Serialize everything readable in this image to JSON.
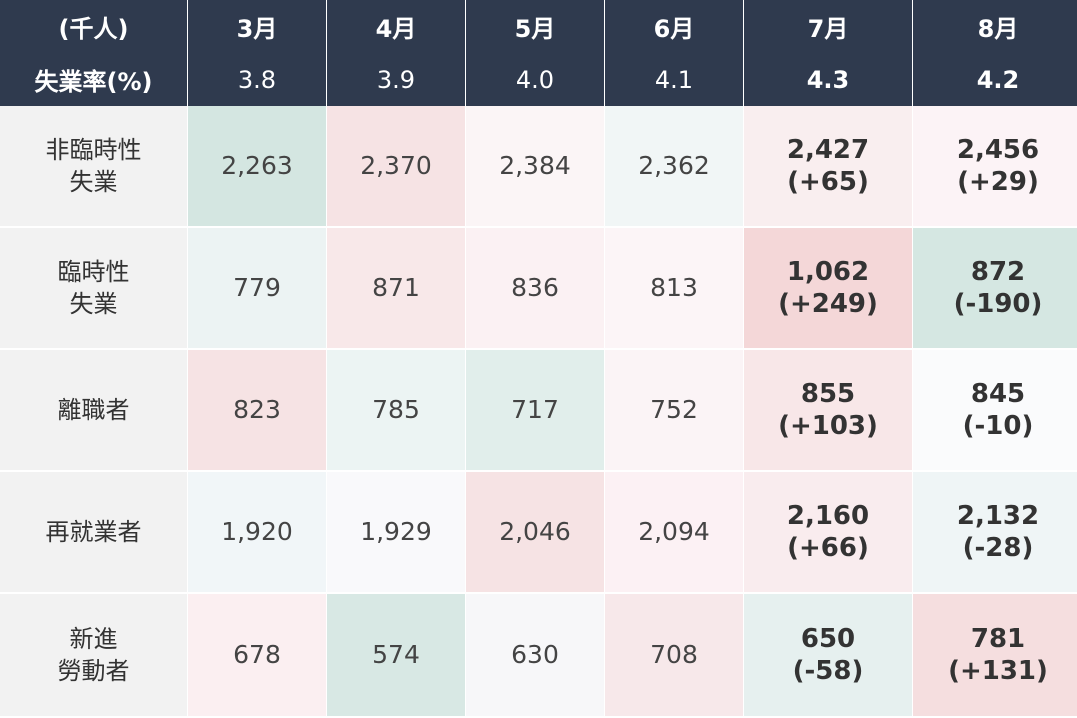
{
  "chart_data": {
    "type": "table",
    "corner_label": "(千人)",
    "columns": [
      "3月",
      "4月",
      "5月",
      "6月",
      "7月",
      "8月"
    ],
    "rate_label": "失業率(%)",
    "rates": [
      "3.8",
      "3.9",
      "4.0",
      "4.1",
      "4.3",
      "4.2"
    ],
    "rows": [
      {
        "label": "非臨時性\n失業",
        "values": [
          "2,263",
          "2,370",
          "2,384",
          "2,362",
          "2,427",
          "2,456"
        ],
        "deltas": [
          "",
          "",
          "",
          "",
          "(+65)",
          "(+29)"
        ],
        "colors": [
          "#d4e6e1",
          "#f6e3e4",
          "#fbf5f6",
          "#f1f6f6",
          "#f9eeef",
          "#fcf3f6"
        ]
      },
      {
        "label": "臨時性\n失業",
        "values": [
          "779",
          "871",
          "836",
          "813",
          "1,062",
          "872"
        ],
        "deltas": [
          "",
          "",
          "",
          "",
          "(+249)",
          "(-190)"
        ],
        "colors": [
          "#ecf3f3",
          "#f8e8e9",
          "#fbf1f3",
          "#fcf5f7",
          "#f4d7d8",
          "#d5e7e2"
        ]
      },
      {
        "label": "離職者",
        "values": [
          "823",
          "785",
          "717",
          "752",
          "855",
          "845"
        ],
        "deltas": [
          "",
          "",
          "",
          "",
          "(+103)",
          "(-10)"
        ],
        "colors": [
          "#f6e3e4",
          "#ecf4f3",
          "#e1eeeb",
          "#fbf4f6",
          "#f8e7e8",
          "#fafbfc"
        ]
      },
      {
        "label": "再就業者",
        "values": [
          "1,920",
          "1,929",
          "2,046",
          "2,094",
          "2,160",
          "2,132"
        ],
        "deltas": [
          "",
          "",
          "",
          "",
          "(+66)",
          "(-28)"
        ],
        "colors": [
          "#f1f6f8",
          "#f9f9fb",
          "#f6e3e4",
          "#fcf1f4",
          "#f9ecee",
          "#eff5f6"
        ]
      },
      {
        "label": "新進\n勞動者",
        "values": [
          "678",
          "574",
          "630",
          "708",
          "650",
          "781"
        ],
        "deltas": [
          "",
          "",
          "",
          "",
          "(-58)",
          "(+131)"
        ],
        "colors": [
          "#fbeff1",
          "#d8e8e4",
          "#f7f7f9",
          "#f7e8ea",
          "#e6f0ef",
          "#f5dedf"
        ]
      }
    ]
  }
}
